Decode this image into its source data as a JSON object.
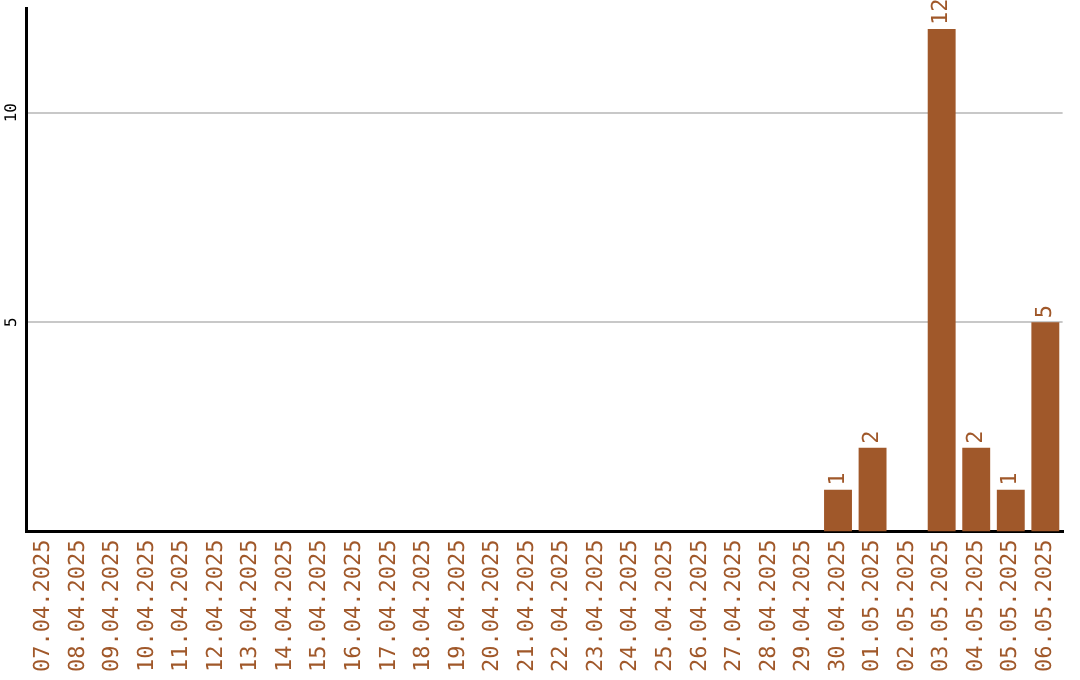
{
  "chart_data": {
    "type": "bar",
    "categories": [
      "07.04.2025",
      "08.04.2025",
      "09.04.2025",
      "10.04.2025",
      "11.04.2025",
      "12.04.2025",
      "13.04.2025",
      "14.04.2025",
      "15.04.2025",
      "16.04.2025",
      "17.04.2025",
      "18.04.2025",
      "19.04.2025",
      "20.04.2025",
      "21.04.2025",
      "22.04.2025",
      "23.04.2025",
      "24.04.2025",
      "25.04.2025",
      "26.04.2025",
      "27.04.2025",
      "28.04.2025",
      "29.04.2025",
      "30.04.2025",
      "01.05.2025",
      "02.05.2025",
      "03.05.2025",
      "04.05.2025",
      "05.05.2025",
      "06.05.2025"
    ],
    "values": [
      0,
      0,
      0,
      0,
      0,
      0,
      0,
      0,
      0,
      0,
      0,
      0,
      0,
      0,
      0,
      0,
      0,
      0,
      0,
      0,
      0,
      0,
      0,
      1,
      2,
      0,
      12,
      2,
      1,
      5
    ],
    "value_labels": [
      null,
      null,
      null,
      null,
      null,
      null,
      null,
      null,
      null,
      null,
      null,
      null,
      null,
      null,
      null,
      null,
      null,
      null,
      null,
      null,
      null,
      null,
      null,
      "1",
      "2",
      null,
      "12",
      "2",
      "1",
      "5"
    ],
    "color": "#a0582a",
    "ylim": [
      0,
      12.5
    ],
    "yticks": [
      5,
      10
    ],
    "grid": "y",
    "legend": false
  }
}
